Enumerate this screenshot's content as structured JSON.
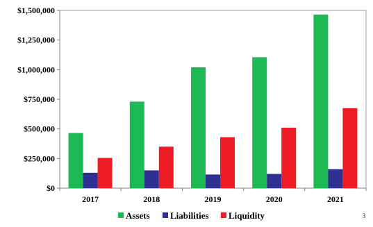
{
  "chart_data": {
    "type": "bar",
    "categories": [
      "2017",
      "2018",
      "2019",
      "2020",
      "2021"
    ],
    "series": [
      {
        "name": "Assets",
        "color": "#1db954",
        "values": [
          465000,
          730000,
          1020000,
          1105000,
          1465000
        ]
      },
      {
        "name": "Liabilities",
        "color": "#2e3192",
        "values": [
          130000,
          150000,
          115000,
          120000,
          160000
        ]
      },
      {
        "name": "Liquidity",
        "color": "#ee1c25",
        "values": [
          255000,
          350000,
          430000,
          510000,
          675000
        ]
      }
    ],
    "ylim": [
      0,
      1500000
    ],
    "yticks": [
      0,
      250000,
      500000,
      750000,
      1000000,
      1250000,
      1500000
    ],
    "ytick_labels": [
      "$0",
      "$250,000",
      "$500,000",
      "$750,000",
      "$1,000,000",
      "$1,250,000",
      "$1,500,000"
    ],
    "grid": false,
    "legend_position": "bottom-center"
  },
  "page_number": "3"
}
